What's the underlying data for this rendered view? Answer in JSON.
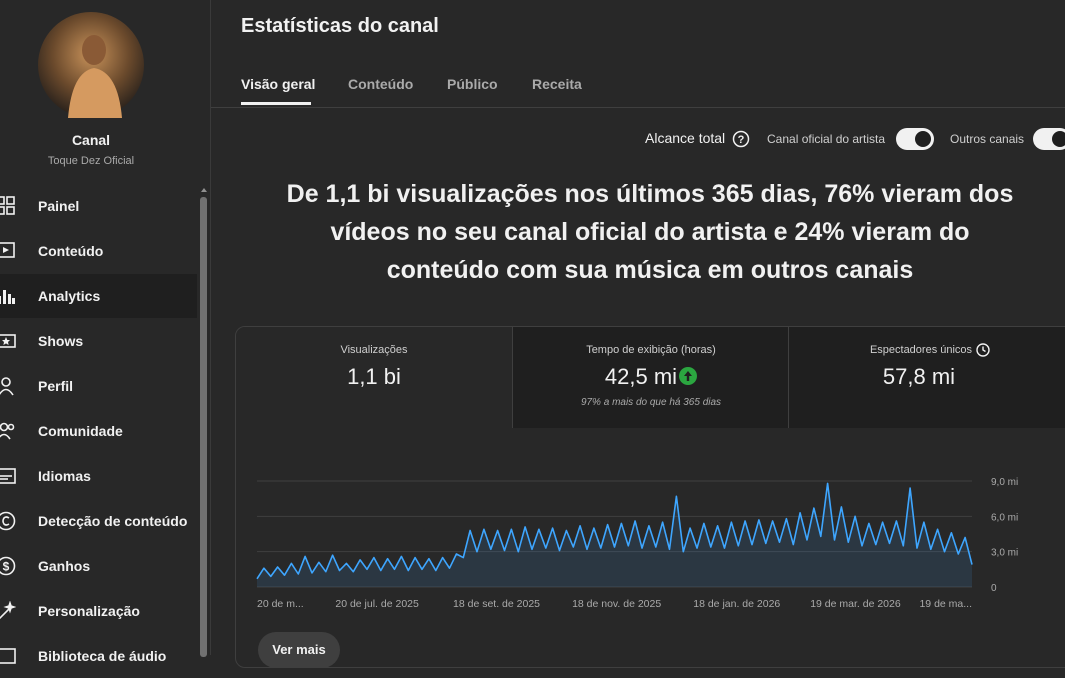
{
  "sidebar": {
    "channel_title": "Canal",
    "channel_name": "Toque Dez Oficial",
    "nav": [
      "Painel",
      "Conteúdo",
      "Analytics",
      "Shows",
      "Perfil",
      "Comunidade",
      "Idiomas",
      "Detecção de conteúdo",
      "Ganhos",
      "Personalização",
      "Biblioteca de áudio"
    ]
  },
  "header": {
    "title": "Estatísticas do canal",
    "tabs": [
      "Visão geral",
      "Conteúdo",
      "Público",
      "Receita"
    ]
  },
  "toggles": {
    "reach_label": "Alcance total",
    "options": [
      "Canal oficial do artista",
      "Outros canais"
    ]
  },
  "headline": "De 1,1 bi visualizações nos últimos 365 dias, 76% vieram dos vídeos no seu canal oficial do artista e 24% vieram do conteúdo com sua música em outros canais",
  "metrics": [
    {
      "label": "Visualizações",
      "value": "1,1 bi"
    },
    {
      "label": "Tempo de exibição (horas)",
      "value": "42,5 mi",
      "note": "97% a mais do que há 365 dias"
    },
    {
      "label": "Espectadores únicos",
      "value": "57,8 mi"
    }
  ],
  "chart_data": {
    "type": "line",
    "xticks": [
      "20 de m...",
      "20 de jul. de 2025",
      "18 de set. de 2025",
      "18 de nov. de 2025",
      "18 de jan. de 2026",
      "19 de mar. de 2026",
      "19 de ma..."
    ],
    "series": [
      {
        "color": "#3ea6ff",
        "values": [
          0.7,
          1.6,
          0.9,
          1.7,
          1.0,
          2.0,
          1.1,
          2.6,
          1.2,
          2.1,
          1.3,
          2.7,
          1.4,
          2.0,
          1.3,
          2.3,
          1.5,
          2.5,
          1.4,
          2.4,
          1.5,
          2.6,
          1.4,
          2.5,
          1.5,
          2.4,
          1.4,
          2.5,
          1.6,
          2.8,
          2.5,
          4.8,
          3.0,
          4.9,
          3.2,
          4.8,
          3.1,
          4.9,
          3.0,
          5.1,
          3.2,
          4.9,
          3.3,
          5.0,
          3.1,
          4.8,
          3.4,
          5.2,
          3.2,
          5.0,
          3.3,
          5.3,
          3.4,
          5.4,
          3.5,
          5.6,
          3.3,
          5.2,
          3.4,
          5.5,
          3.2,
          7.7,
          3.0,
          5.0,
          3.3,
          5.4,
          3.4,
          5.2,
          3.3,
          5.5,
          3.5,
          5.6,
          3.6,
          5.7,
          3.7,
          5.6,
          3.8,
          5.8,
          3.6,
          6.3,
          4.0,
          6.7,
          4.3,
          8.8,
          4.0,
          6.8,
          3.8,
          6.0,
          3.5,
          5.4,
          3.6,
          5.5,
          3.7,
          5.6,
          3.5,
          8.4,
          3.3,
          5.5,
          3.2,
          4.9,
          3.0,
          4.6,
          2.8,
          4.2,
          1.9
        ]
      }
    ],
    "ylim": [
      0,
      9
    ],
    "yticks": [
      0,
      {
        "value": 3,
        "label": "3,0 mi"
      },
      {
        "value": 6,
        "label": "6,0 mi"
      },
      {
        "value": 9,
        "label": "9,0 mi"
      }
    ],
    "grid": true
  },
  "button": "Ver mais"
}
